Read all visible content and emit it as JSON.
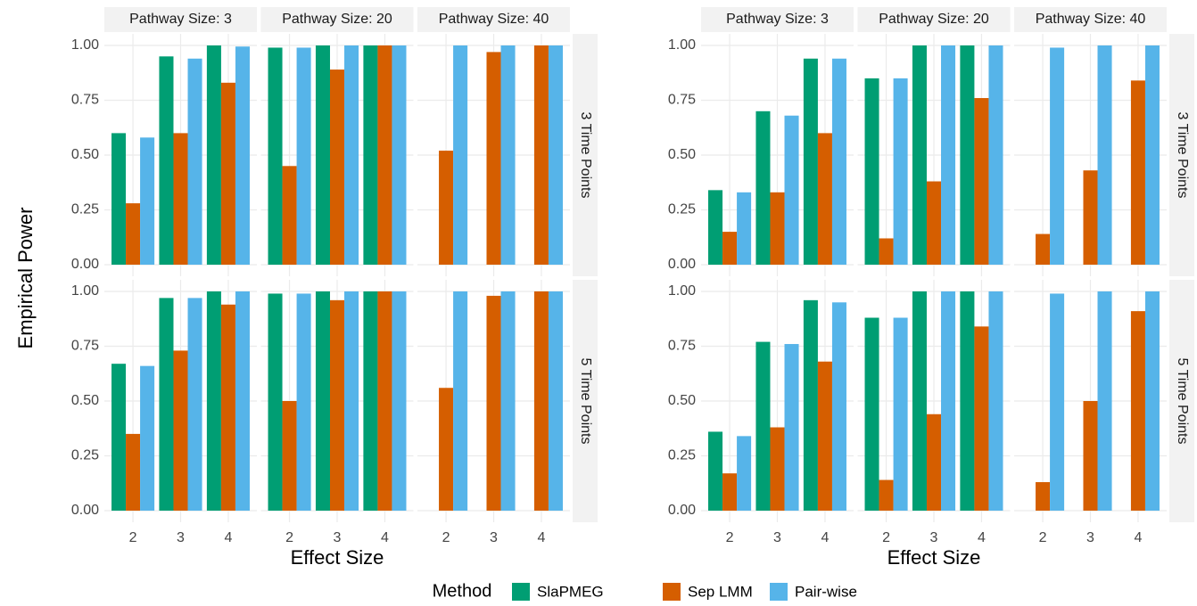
{
  "y_label": "Empirical Power",
  "legend_title": "Method",
  "methods": [
    {
      "name": "SlaPMEG",
      "color": "#009E73"
    },
    {
      "name": "Sep LMM",
      "color": "#D55E00"
    },
    {
      "name": "Pair-wise",
      "color": "#56B4E9"
    }
  ],
  "chart_data": [
    {
      "type": "bar",
      "x_label": "Effect Size",
      "col_labels": [
        "Pathway Size: 3",
        "Pathway Size: 20",
        "Pathway Size: 40"
      ],
      "row_labels": [
        "3 Time Points",
        "5 Time Points"
      ],
      "categories": [
        "2",
        "3",
        "4"
      ],
      "ylim": [
        0,
        1
      ],
      "yticks": [
        {
          "value": 0,
          "label": "0.00"
        },
        {
          "value": 0.25,
          "label": "0.25"
        },
        {
          "value": 0.5,
          "label": "0.50"
        },
        {
          "value": 0.75,
          "label": "0.75"
        },
        {
          "value": 1,
          "label": "1.00"
        }
      ],
      "values": [
        [
          [
            0.6,
            0.95,
            1.0
          ],
          [
            0.28,
            0.6,
            0.83
          ],
          [
            0.58,
            0.94,
            0.995
          ]
        ],
        [
          [
            0.99,
            1.0,
            1.0
          ],
          [
            0.45,
            0.89,
            1.0
          ],
          [
            0.99,
            1.0,
            1.0
          ]
        ],
        [
          [
            0,
            0,
            0
          ],
          [
            0.52,
            0.97,
            1.0
          ],
          [
            1.0,
            1.0,
            1.0
          ]
        ],
        [
          [
            0.67,
            0.97,
            1.0
          ],
          [
            0.35,
            0.73,
            0.94
          ],
          [
            0.66,
            0.97,
            1.0
          ]
        ],
        [
          [
            0.99,
            1.0,
            1.0
          ],
          [
            0.5,
            0.96,
            1.0
          ],
          [
            0.99,
            1.0,
            1.0
          ]
        ],
        [
          [
            0,
            0,
            0
          ],
          [
            0.56,
            0.98,
            1.0
          ],
          [
            1.0,
            1.0,
            1.0
          ]
        ]
      ]
    },
    {
      "type": "bar",
      "x_label": "Effect Size",
      "col_labels": [
        "Pathway Size: 3",
        "Pathway Size: 20",
        "Pathway Size: 40"
      ],
      "row_labels": [
        "3 Time Points",
        "5 Time Points"
      ],
      "categories": [
        "2",
        "3",
        "4"
      ],
      "ylim": [
        0,
        1
      ],
      "yticks": [
        {
          "value": 0,
          "label": "0.00"
        },
        {
          "value": 0.25,
          "label": "0.25"
        },
        {
          "value": 0.5,
          "label": "0.50"
        },
        {
          "value": 0.75,
          "label": "0.75"
        },
        {
          "value": 1,
          "label": "1.00"
        }
      ],
      "values": [
        [
          [
            0.34,
            0.7,
            0.94
          ],
          [
            0.15,
            0.33,
            0.6
          ],
          [
            0.33,
            0.68,
            0.94
          ]
        ],
        [
          [
            0.85,
            1.0,
            1.0
          ],
          [
            0.12,
            0.38,
            0.76
          ],
          [
            0.85,
            1.0,
            1.0
          ]
        ],
        [
          [
            0,
            0,
            0
          ],
          [
            0.14,
            0.43,
            0.84
          ],
          [
            0.99,
            1.0,
            1.0
          ]
        ],
        [
          [
            0.36,
            0.77,
            0.96
          ],
          [
            0.17,
            0.38,
            0.68
          ],
          [
            0.34,
            0.76,
            0.95
          ]
        ],
        [
          [
            0.88,
            1.0,
            1.0
          ],
          [
            0.14,
            0.44,
            0.84
          ],
          [
            0.88,
            1.0,
            1.0
          ]
        ],
        [
          [
            0,
            0,
            0
          ],
          [
            0.13,
            0.5,
            0.91
          ],
          [
            0.99,
            1.0,
            1.0
          ]
        ]
      ]
    }
  ]
}
